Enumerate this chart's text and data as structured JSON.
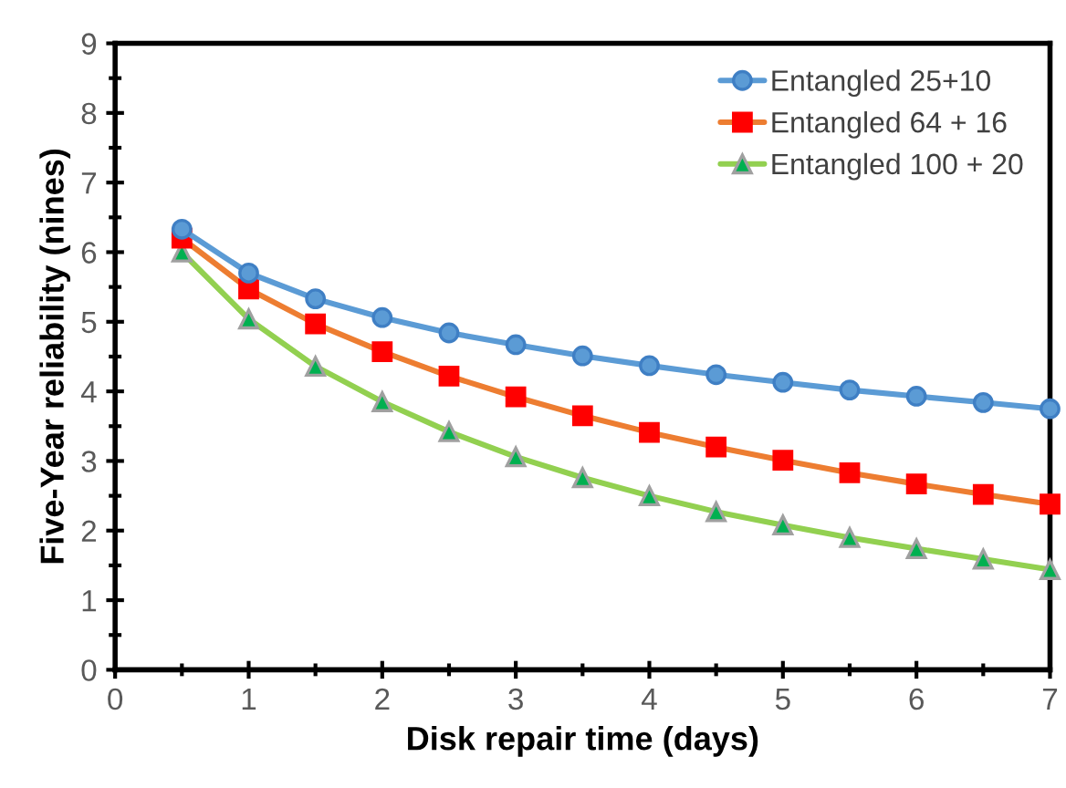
{
  "chart_data": {
    "type": "line",
    "xlabel": "Disk repair time (days)",
    "ylabel": "Five-Year reliability (nines)",
    "x": [
      0.5,
      1,
      1.5,
      2,
      2.5,
      3,
      3.5,
      4,
      4.5,
      5,
      5.5,
      6,
      6.5,
      7
    ],
    "series": [
      {
        "name": "Entangled 25+10",
        "color": "#5b9bd5",
        "marker": "circle",
        "values": [
          6.33,
          5.7,
          5.33,
          5.06,
          4.84,
          4.67,
          4.51,
          4.37,
          4.24,
          4.13,
          4.02,
          3.93,
          3.84,
          3.75
        ]
      },
      {
        "name": "Entangled 64 + 16",
        "color": "#ed7d31",
        "marker": "square",
        "values": [
          6.2,
          5.47,
          4.97,
          4.57,
          4.22,
          3.92,
          3.65,
          3.41,
          3.2,
          3.01,
          2.83,
          2.67,
          2.52,
          2.38
        ]
      },
      {
        "name": "Entangled 100 + 20",
        "color": "#92d050",
        "marker": "triangle",
        "values": [
          6.0,
          5.04,
          4.36,
          3.85,
          3.42,
          3.06,
          2.76,
          2.5,
          2.27,
          2.08,
          1.9,
          1.74,
          1.59,
          1.44
        ]
      }
    ],
    "xlim": [
      0,
      7
    ],
    "xticks": [
      0,
      1,
      2,
      3,
      4,
      5,
      6,
      7
    ],
    "ylim": [
      0,
      9
    ],
    "yticks": [
      0,
      1,
      2,
      3,
      4,
      5,
      6,
      7,
      8,
      9
    ],
    "grid": false,
    "legend": "top right",
    "line_style": "solid"
  }
}
